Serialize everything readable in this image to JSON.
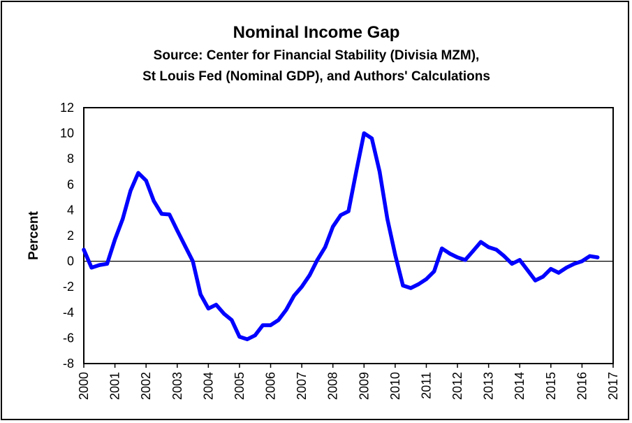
{
  "chart_data": {
    "type": "line",
    "title": "Nominal Income Gap",
    "subtitle_lines": [
      "Source: Center for Financial Stability (Divisia MZM),",
      "St Louis Fed (Nominal GDP), and Authors' Calculations"
    ],
    "xlabel": "",
    "ylabel": "Percent",
    "ylim": [
      -8,
      12
    ],
    "y_ticks": [
      "12",
      "10",
      "8",
      "6",
      "4",
      "2",
      "0",
      "-2",
      "-4",
      "-6",
      "-8"
    ],
    "xlim": [
      2000,
      2017
    ],
    "x_ticks": [
      "2000",
      "2001",
      "2002",
      "2003",
      "2004",
      "2005",
      "2006",
      "2007",
      "2008",
      "2009",
      "2010",
      "2011",
      "2012",
      "2013",
      "2014",
      "2015",
      "2016",
      "2017"
    ],
    "grid": false,
    "series": [
      {
        "name": "Nominal Income Gap",
        "color": "#0000ff",
        "points": [
          [
            2000.0,
            0.9
          ],
          [
            2000.25,
            -0.5
          ],
          [
            2000.5,
            -0.3
          ],
          [
            2000.75,
            -0.2
          ],
          [
            2001.0,
            1.7
          ],
          [
            2001.25,
            3.3
          ],
          [
            2001.5,
            5.5
          ],
          [
            2001.75,
            6.9
          ],
          [
            2002.0,
            6.3
          ],
          [
            2002.25,
            4.7
          ],
          [
            2002.5,
            3.7
          ],
          [
            2002.75,
            3.65
          ],
          [
            2003.0,
            2.4
          ],
          [
            2003.25,
            1.2
          ],
          [
            2003.5,
            0.0
          ],
          [
            2003.75,
            -2.6
          ],
          [
            2004.0,
            -3.7
          ],
          [
            2004.25,
            -3.4
          ],
          [
            2004.5,
            -4.1
          ],
          [
            2004.75,
            -4.6
          ],
          [
            2005.0,
            -5.9
          ],
          [
            2005.25,
            -6.1
          ],
          [
            2005.5,
            -5.8
          ],
          [
            2005.75,
            -5.0
          ],
          [
            2006.0,
            -5.0
          ],
          [
            2006.25,
            -4.6
          ],
          [
            2006.5,
            -3.8
          ],
          [
            2006.75,
            -2.7
          ],
          [
            2007.0,
            -2.0
          ],
          [
            2007.25,
            -1.1
          ],
          [
            2007.5,
            0.1
          ],
          [
            2007.75,
            1.1
          ],
          [
            2008.0,
            2.7
          ],
          [
            2008.25,
            3.6
          ],
          [
            2008.5,
            3.9
          ],
          [
            2008.75,
            7.0
          ],
          [
            2009.0,
            10.0
          ],
          [
            2009.25,
            9.6
          ],
          [
            2009.5,
            7.0
          ],
          [
            2009.75,
            3.3
          ],
          [
            2010.0,
            0.5
          ],
          [
            2010.25,
            -1.9
          ],
          [
            2010.5,
            -2.1
          ],
          [
            2010.75,
            -1.8
          ],
          [
            2011.0,
            -1.4
          ],
          [
            2011.25,
            -0.8
          ],
          [
            2011.5,
            1.0
          ],
          [
            2011.75,
            0.6
          ],
          [
            2012.0,
            0.3
          ],
          [
            2012.25,
            0.1
          ],
          [
            2012.5,
            0.8
          ],
          [
            2012.75,
            1.5
          ],
          [
            2013.0,
            1.1
          ],
          [
            2013.25,
            0.9
          ],
          [
            2013.5,
            0.4
          ],
          [
            2013.75,
            -0.2
          ],
          [
            2014.0,
            0.1
          ],
          [
            2014.25,
            -0.7
          ],
          [
            2014.5,
            -1.5
          ],
          [
            2014.75,
            -1.2
          ],
          [
            2015.0,
            -0.6
          ],
          [
            2015.25,
            -0.9
          ],
          [
            2015.5,
            -0.5
          ],
          [
            2015.75,
            -0.2
          ],
          [
            2016.0,
            0.0
          ],
          [
            2016.25,
            0.4
          ],
          [
            2016.5,
            0.3
          ]
        ]
      }
    ]
  }
}
